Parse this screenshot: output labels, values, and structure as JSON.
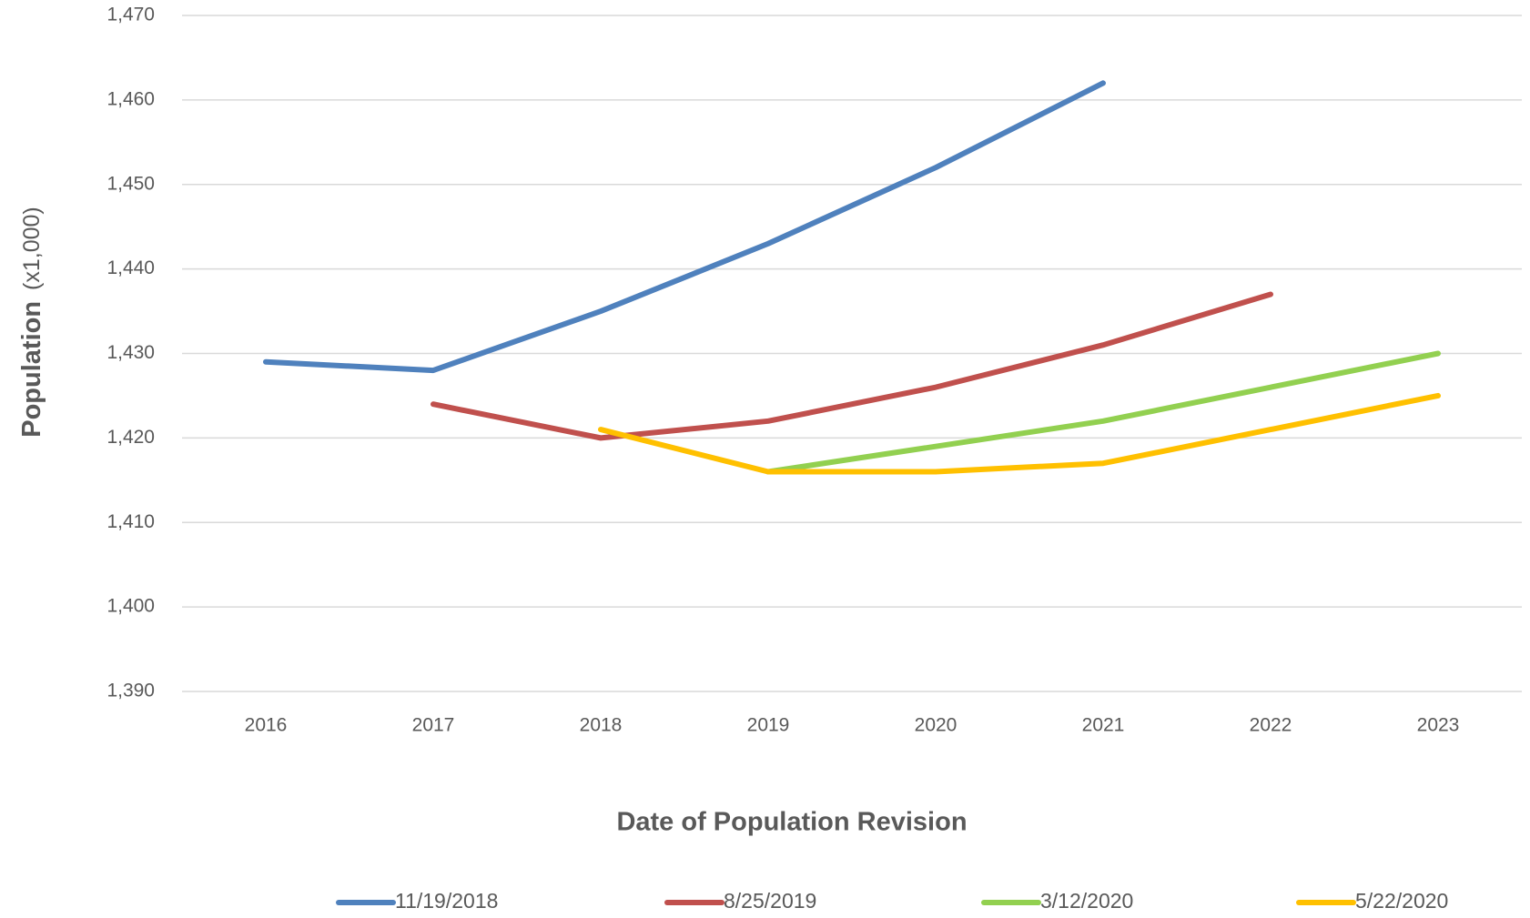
{
  "chart_data": {
    "type": "line",
    "x_label": "Date of Population Revision",
    "y_label": "Population",
    "y_label_unit": "(x1,000)",
    "categories": [
      "2016",
      "2017",
      "2018",
      "2019",
      "2020",
      "2021",
      "2022",
      "2023"
    ],
    "ylim": [
      1390,
      1470
    ],
    "yticks": [
      {
        "value": 1390,
        "label": "1,390"
      },
      {
        "value": 1400,
        "label": "1,400"
      },
      {
        "value": 1410,
        "label": "1,410"
      },
      {
        "value": 1420,
        "label": "1,420"
      },
      {
        "value": 1430,
        "label": "1,430"
      },
      {
        "value": 1440,
        "label": "1,440"
      },
      {
        "value": 1450,
        "label": "1,450"
      },
      {
        "value": 1460,
        "label": "1,460"
      },
      {
        "value": 1470,
        "label": "1,470"
      }
    ],
    "grid": true,
    "legend": "bottom",
    "series": [
      {
        "name": "11/19/2018",
        "color": "#4f81bd",
        "values": [
          1429,
          1428,
          1435,
          1443,
          1452,
          1462,
          null,
          null
        ]
      },
      {
        "name": "8/25/2019",
        "color": "#c0504d",
        "values": [
          null,
          1424,
          1420,
          1422,
          1426,
          1431,
          1437,
          null
        ]
      },
      {
        "name": "3/12/2020",
        "color": "#92d050",
        "values": [
          null,
          null,
          null,
          1416,
          1419,
          1422,
          1426,
          1430
        ]
      },
      {
        "name": "5/22/2020",
        "color": "#ffc000",
        "values": [
          null,
          null,
          1421,
          1416,
          1416,
          1417,
          1421,
          1425
        ]
      }
    ]
  }
}
